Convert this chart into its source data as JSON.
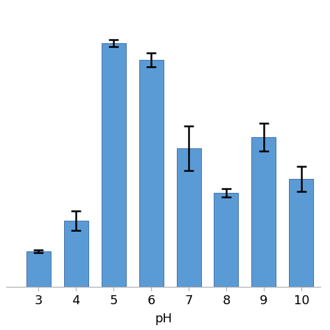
{
  "categories": [
    "3",
    "4",
    "5",
    "6",
    "7",
    "8",
    "9",
    "10"
  ],
  "values": [
    13,
    24,
    88,
    82,
    50,
    34,
    54,
    39
  ],
  "errors": [
    0.5,
    3.5,
    1.2,
    2.5,
    8,
    1.5,
    5,
    4.5
  ],
  "bar_color": "#5b9bd5",
  "bar_edge_color": "#4472a8",
  "xlabel": "pH",
  "ylim": [
    0,
    100
  ],
  "xlabel_fontsize": 13,
  "tick_fontsize": 13,
  "background_color": "#ffffff",
  "bar_width": 0.65
}
